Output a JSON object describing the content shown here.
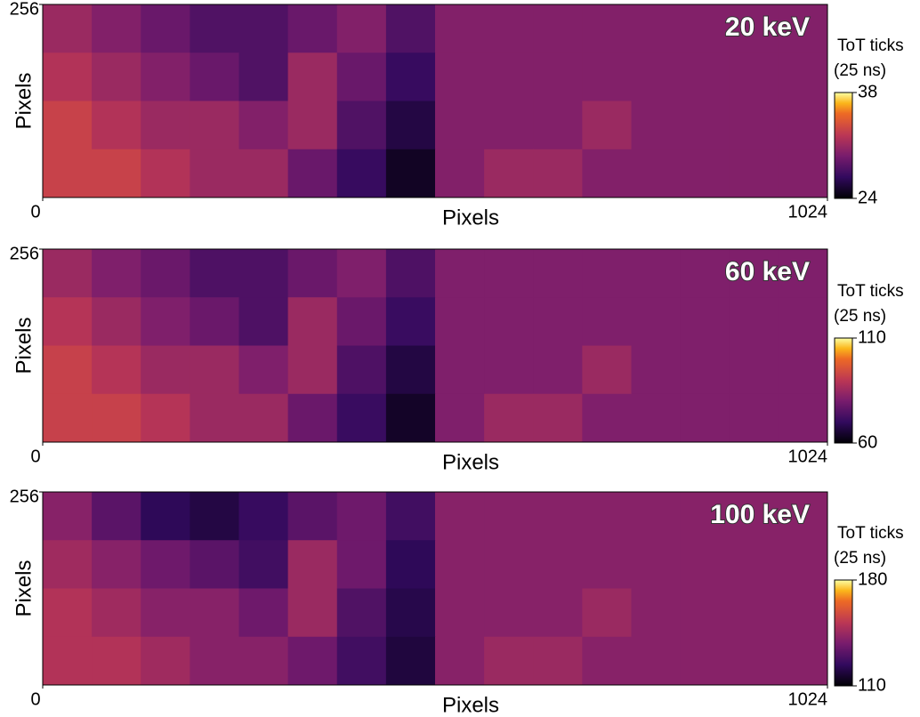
{
  "chart_data": [
    {
      "type": "heatmap",
      "annotation": "20 keV",
      "x_label": "Pixels",
      "y_label": "Pixels",
      "xlim": [
        0,
        1024
      ],
      "ylim": [
        0,
        256
      ],
      "xticks": [
        0,
        1024
      ],
      "yticks": [
        256
      ],
      "colormap": "inferno",
      "clim": [
        24,
        38
      ],
      "cticks": [
        24,
        38
      ],
      "colorbar_label": [
        "ToT ticks",
        "(25 ns)"
      ],
      "z": [
        [
          31,
          30,
          29,
          28,
          28,
          29,
          30,
          28,
          30,
          30,
          30,
          30,
          30,
          30,
          30,
          30
        ],
        [
          32,
          31,
          30,
          29,
          28,
          31,
          29,
          27,
          30,
          30,
          30,
          30,
          30,
          30,
          30,
          30
        ],
        [
          33,
          32,
          31,
          31,
          30,
          31,
          28,
          26,
          30,
          30,
          30,
          31,
          30,
          30,
          30,
          30
        ],
        [
          33,
          33,
          32,
          31,
          31,
          29,
          27,
          25,
          30,
          31,
          31,
          30,
          30,
          30,
          30,
          30
        ]
      ]
    },
    {
      "type": "heatmap",
      "annotation": "60 keV",
      "x_label": "Pixels",
      "y_label": "Pixels",
      "xlim": [
        0,
        1024
      ],
      "ylim": [
        0,
        256
      ],
      "xticks": [
        0,
        1024
      ],
      "yticks": [
        256
      ],
      "colormap": "inferno",
      "clim": [
        60,
        110
      ],
      "cticks": [
        60,
        110
      ],
      "colorbar_label": [
        "ToT ticks",
        "(25 ns)"
      ],
      "z": [
        [
          85,
          81,
          78,
          74,
          74,
          78,
          81,
          74,
          81,
          81,
          81,
          81,
          81,
          81,
          81,
          81
        ],
        [
          89,
          85,
          81,
          78,
          74,
          85,
          78,
          71,
          81,
          81,
          81,
          81,
          81,
          81,
          81,
          81
        ],
        [
          92,
          89,
          85,
          85,
          81,
          85,
          74,
          67,
          81,
          81,
          81,
          85,
          81,
          81,
          81,
          81
        ],
        [
          92,
          92,
          89,
          85,
          85,
          78,
          71,
          64,
          81,
          85,
          85,
          81,
          81,
          81,
          81,
          81
        ]
      ]
    },
    {
      "type": "heatmap",
      "annotation": "100 keV",
      "x_label": "Pixels",
      "y_label": "Pixels",
      "xlim": [
        0,
        1024
      ],
      "ylim": [
        0,
        256
      ],
      "xticks": [
        0,
        1024
      ],
      "yticks": [
        256
      ],
      "colormap": "inferno",
      "clim": [
        110,
        180
      ],
      "cticks": [
        110,
        180
      ],
      "colorbar_label": [
        "ToT ticks",
        "(25 ns)"
      ],
      "z": [
        [
          141,
          132,
          123,
          120,
          125,
          132,
          136,
          127,
          141,
          141,
          141,
          141,
          141,
          141,
          141,
          141
        ],
        [
          146,
          141,
          136,
          132,
          127,
          145,
          136,
          123,
          141,
          141,
          141,
          141,
          141,
          141,
          141,
          141
        ],
        [
          150,
          146,
          141,
          141,
          136,
          145,
          130,
          121,
          141,
          141,
          141,
          145,
          141,
          141,
          141,
          141
        ],
        [
          150,
          150,
          146,
          141,
          141,
          136,
          127,
          119,
          141,
          145,
          145,
          141,
          141,
          141,
          141,
          141
        ]
      ]
    }
  ]
}
